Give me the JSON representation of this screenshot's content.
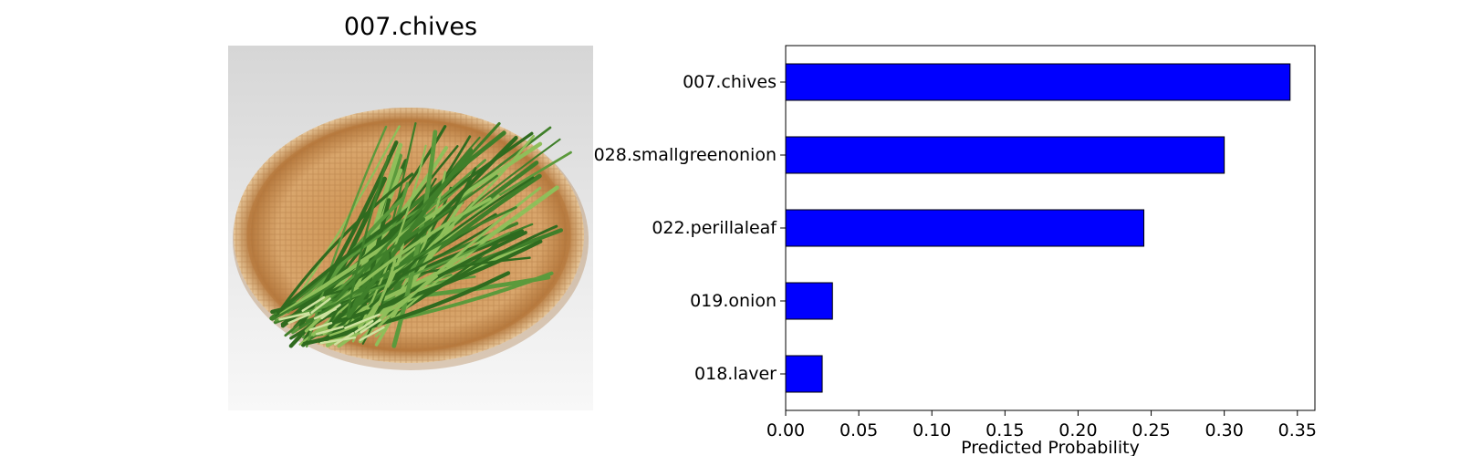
{
  "image_panel": {
    "title": "007.chives",
    "background_top": "#d6d6d6",
    "background_bottom": "#f8f8f8",
    "basket_color": "#d9a66c",
    "chive_colors": [
      "#2f6b1f",
      "#3f7f2a",
      "#5b9a3c",
      "#8fbf5a"
    ]
  },
  "chart_data": {
    "type": "bar",
    "orientation": "horizontal",
    "categories": [
      "007.chives",
      "028.smallgreenonion",
      "022.perillaleaf",
      "019.onion",
      "018.laver"
    ],
    "values": [
      0.345,
      0.3,
      0.245,
      0.032,
      0.025
    ],
    "xlabel": "Predicted Probability",
    "ylabel": "",
    "xlim": [
      0.0,
      0.362
    ],
    "xticks": [
      "0.00",
      "0.05",
      "0.10",
      "0.15",
      "0.20",
      "0.25",
      "0.30",
      "0.35"
    ],
    "bar_color": "#0000ff",
    "edge_color": "#000000",
    "grid": false
  }
}
